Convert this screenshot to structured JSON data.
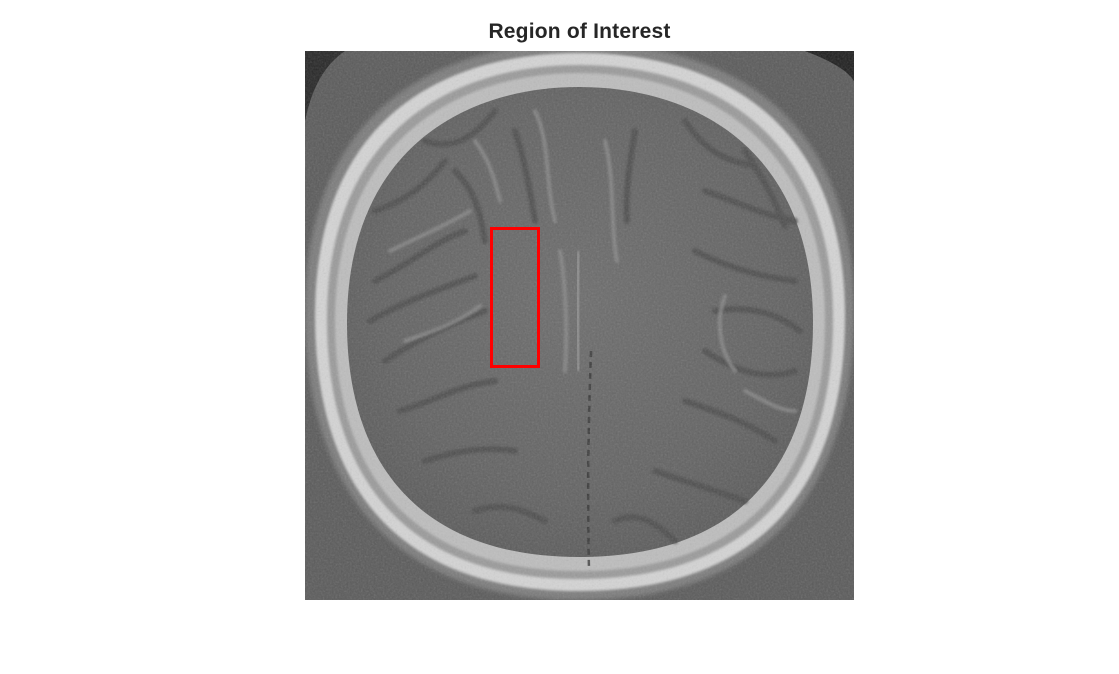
{
  "figure": {
    "title": "Region of Interest"
  },
  "image": {
    "subject": "axial CT scan slice of the head",
    "colormap": "grayscale"
  },
  "roi": {
    "shape": "rectangle",
    "color": "#ff0000"
  }
}
